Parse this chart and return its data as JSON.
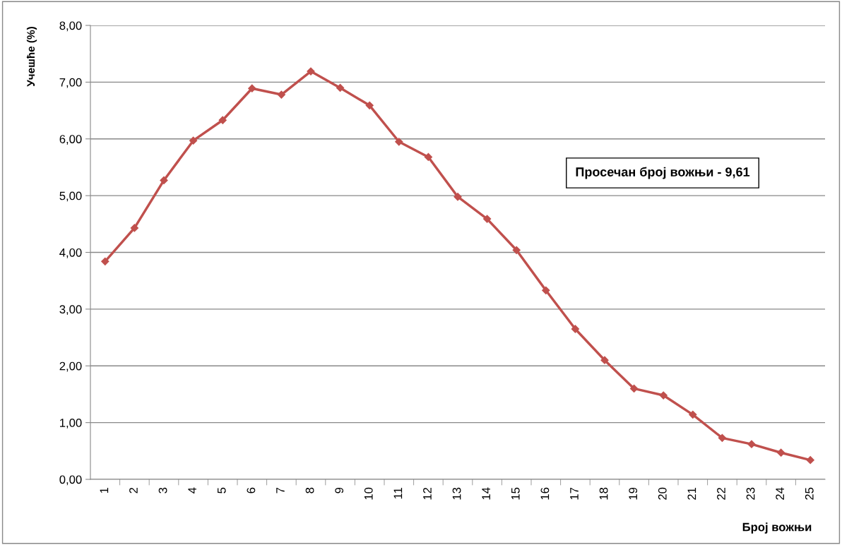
{
  "chart_data": {
    "type": "line",
    "xlabel": "Број вожњи",
    "ylabel": "Учешће (%)",
    "categories": [
      "1",
      "2",
      "3",
      "4",
      "5",
      "6",
      "7",
      "8",
      "9",
      "10",
      "11",
      "12",
      "13",
      "14",
      "15",
      "16",
      "17",
      "18",
      "19",
      "20",
      "21",
      "22",
      "23",
      "24",
      "25"
    ],
    "series": [
      {
        "color": "#c0504d",
        "values": [
          3.84,
          4.43,
          5.27,
          5.97,
          6.33,
          6.89,
          6.78,
          7.19,
          6.9,
          6.59,
          5.95,
          5.68,
          4.98,
          4.59,
          4.04,
          3.33,
          2.65,
          2.1,
          1.6,
          1.48,
          1.14,
          0.73,
          0.62,
          0.47,
          0.34
        ]
      }
    ],
    "ylim": [
      0,
      8
    ],
    "yticks": [
      {
        "value": 0,
        "label": "0,00"
      },
      {
        "value": 1,
        "label": "1,00"
      },
      {
        "value": 2,
        "label": "2,00"
      },
      {
        "value": 3,
        "label": "3,00"
      },
      {
        "value": 4,
        "label": "4,00"
      },
      {
        "value": 5,
        "label": "5,00"
      },
      {
        "value": 6,
        "label": "6,00"
      },
      {
        "value": 7,
        "label": "7,00"
      },
      {
        "value": 8,
        "label": "8,00"
      }
    ],
    "annotations": [
      "Просечан број вожњи - 9,61"
    ],
    "grid": "y",
    "marker": "diamond",
    "line_style": "solid"
  }
}
